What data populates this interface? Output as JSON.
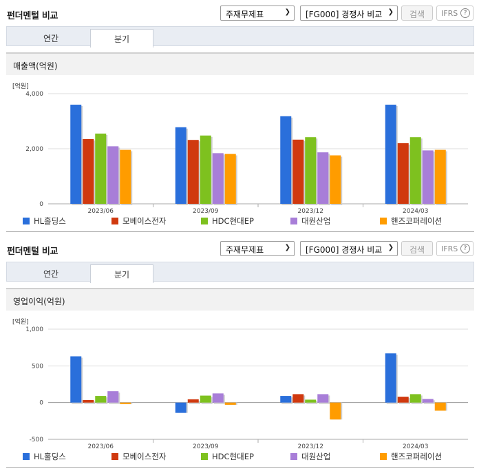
{
  "sections": [
    {
      "title": "펀더멘털 비교",
      "select1": "주재무제표",
      "select2": "[FG000] 경쟁사 비교",
      "search_label": "검색",
      "ifrs_label": "IFRS",
      "ifrs_help": "?",
      "tabs": [
        "연간",
        "분기"
      ],
      "active_tab": 1,
      "metric_label": "매출액(억원)",
      "unit_label": "[억원]"
    },
    {
      "title": "펀더멘털 비교",
      "select1": "주재무제표",
      "select2": "[FG000] 경쟁사 비교",
      "search_label": "검색",
      "ifrs_label": "IFRS",
      "ifrs_help": "?",
      "tabs": [
        "연간",
        "분기"
      ],
      "active_tab": 1,
      "metric_label": "영업이익(억원)",
      "unit_label": "[억원]"
    }
  ],
  "legend": [
    {
      "name": "HL홀딩스",
      "color": "#2a6fdb"
    },
    {
      "name": "모베이스전자",
      "color": "#d0390f"
    },
    {
      "name": "HDC현대EP",
      "color": "#7ec11f"
    },
    {
      "name": "대원산업",
      "color": "#a87ed8"
    },
    {
      "name": "핸즈코퍼레이션",
      "color": "#ff9c00"
    }
  ],
  "chart_data": [
    {
      "type": "bar",
      "categories": [
        "2023/06",
        "2023/09",
        "2023/12",
        "2024/03"
      ],
      "ylabel": "[억원]",
      "ylim": [
        0,
        4000
      ],
      "yticks": [
        0,
        2000,
        4000
      ],
      "ytick_labels": [
        "0",
        "2,000",
        "4,000"
      ],
      "series": [
        {
          "name": "HL홀딩스",
          "values": [
            3600,
            2780,
            3180,
            3600
          ]
        },
        {
          "name": "모베이스전자",
          "values": [
            2350,
            2320,
            2330,
            2200
          ]
        },
        {
          "name": "HDC현대EP",
          "values": [
            2550,
            2480,
            2420,
            2420
          ]
        },
        {
          "name": "대원산업",
          "values": [
            2090,
            1840,
            1870,
            1940
          ]
        },
        {
          "name": "핸즈코퍼레이션",
          "values": [
            1960,
            1810,
            1760,
            1960
          ]
        }
      ]
    },
    {
      "type": "bar",
      "categories": [
        "2023/06",
        "2023/09",
        "2023/12",
        "2024/03"
      ],
      "ylabel": "[억원]",
      "ylim": [
        -500,
        1000
      ],
      "yticks": [
        -500,
        0,
        500,
        1000
      ],
      "ytick_labels": [
        "-500",
        "0",
        "500",
        "1,000"
      ],
      "series": [
        {
          "name": "HL홀딩스",
          "values": [
            630,
            -140,
            90,
            670
          ]
        },
        {
          "name": "모베이스전자",
          "values": [
            35,
            45,
            115,
            80
          ]
        },
        {
          "name": "HDC현대EP",
          "values": [
            90,
            95,
            40,
            115
          ]
        },
        {
          "name": "대원산업",
          "values": [
            155,
            125,
            115,
            50
          ]
        },
        {
          "name": "핸즈코퍼레이션",
          "values": [
            -20,
            -30,
            -230,
            -110
          ]
        }
      ]
    }
  ]
}
